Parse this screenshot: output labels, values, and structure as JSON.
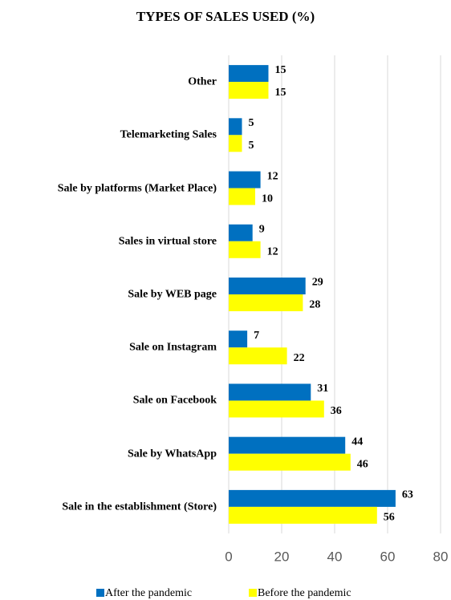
{
  "chart_data": {
    "type": "barh",
    "title": "TYPES OF SALES USED (%)",
    "categories": [
      "Other",
      "Telemarketing Sales",
      "Sale by platforms (Market Place)",
      "Sales in virtual store",
      "Sale by WEB page",
      "Sale on Instagram",
      "Sale on Facebook",
      "Sale by WhatsApp",
      "Sale in the establishment (Store)"
    ],
    "series": [
      {
        "name": "After the pandemic",
        "color": "#0070c0",
        "values": [
          15,
          5,
          12,
          9,
          29,
          7,
          31,
          44,
          63
        ]
      },
      {
        "name": "Before the pandemic",
        "color": "#ffff00",
        "values": [
          15,
          5,
          10,
          12,
          28,
          22,
          36,
          46,
          56
        ]
      }
    ],
    "xlim": [
      0,
      80
    ],
    "xticks": [
      0,
      20,
      40,
      60,
      80
    ],
    "grid": true,
    "legend": "bottom"
  }
}
